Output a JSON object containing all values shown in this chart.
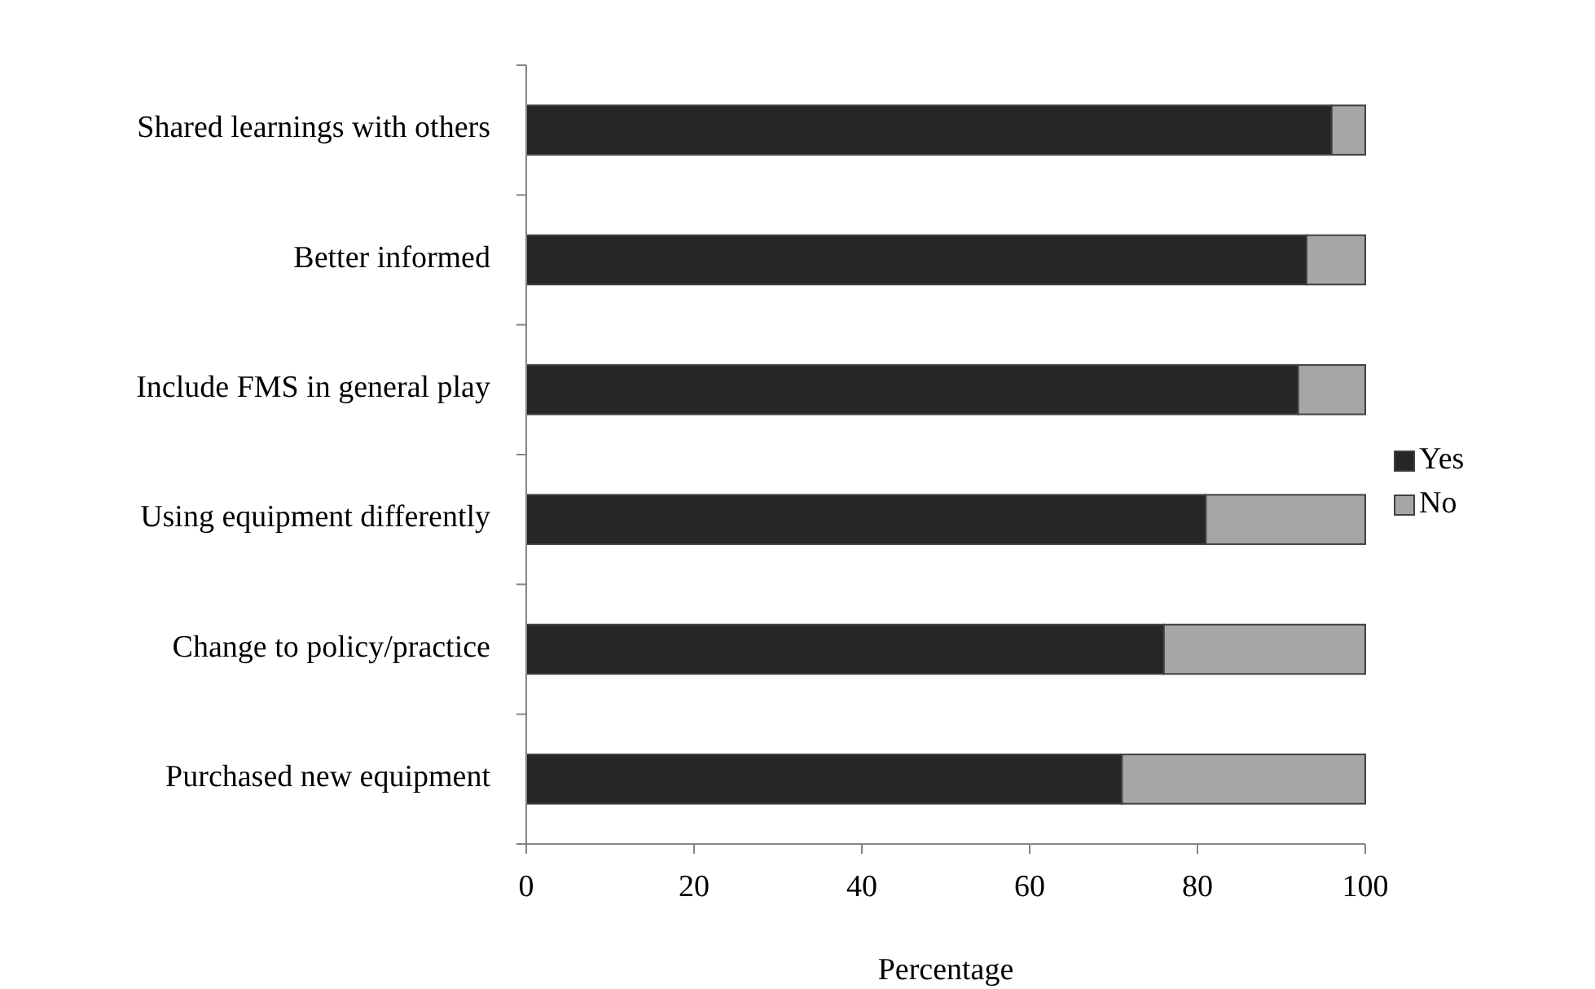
{
  "chart_data": {
    "type": "bar",
    "orientation": "horizontal",
    "stacked": true,
    "xlabel": "Percentage",
    "categories": [
      "Shared learnings with others",
      "Better informed",
      "Include FMS in general play",
      "Using equipment differently",
      "Change to policy/practice",
      "Purchased new equipment"
    ],
    "series": [
      {
        "name": "Yes",
        "color": "#262626",
        "values": [
          96,
          93,
          92,
          81,
          76,
          71
        ]
      },
      {
        "name": "No",
        "color": "#a6a6a6",
        "values": [
          4,
          7,
          8,
          19,
          24,
          29
        ]
      }
    ],
    "xlim": [
      0,
      100
    ],
    "xticks": [
      0,
      20,
      40,
      60,
      80,
      100
    ],
    "legend": "right"
  }
}
